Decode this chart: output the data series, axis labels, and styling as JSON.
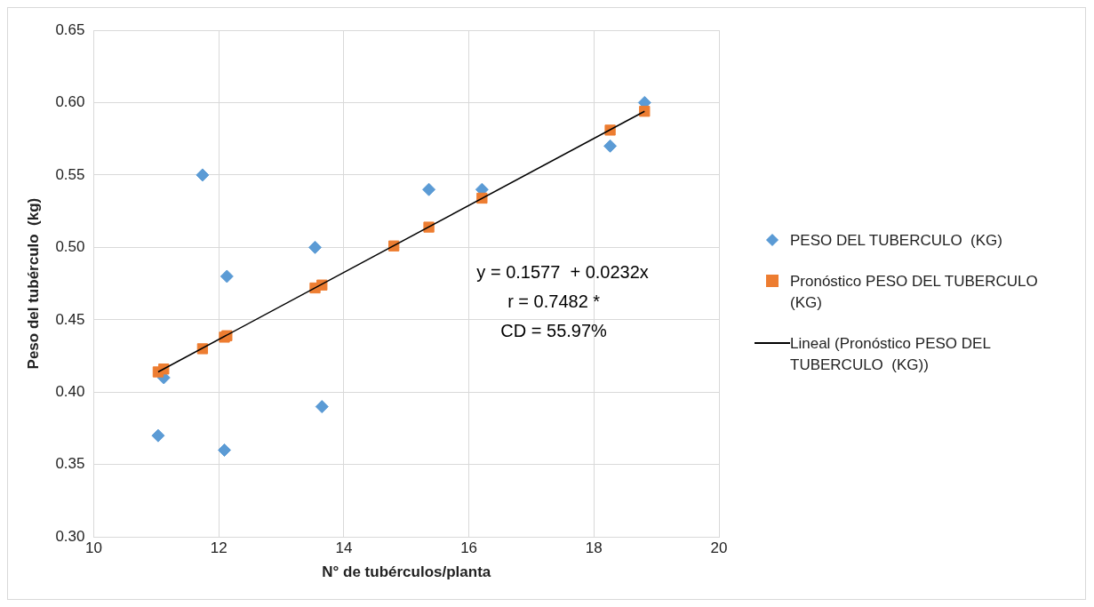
{
  "chart_data": {
    "type": "scatter",
    "xlabel": "N° de tubérculos/planta",
    "ylabel": "Peso del tubérculo  (kg)",
    "xlim": [
      10,
      20
    ],
    "xticks": [
      10,
      12,
      14,
      16,
      18,
      20
    ],
    "ylim": [
      0.3,
      0.65
    ],
    "yticks": [
      {
        "value": 0.3,
        "label": "0.30"
      },
      {
        "value": 0.35,
        "label": "0.35"
      },
      {
        "value": 0.4,
        "label": "0.40"
      },
      {
        "value": 0.45,
        "label": "0.45"
      },
      {
        "value": 0.5,
        "label": "0.50"
      },
      {
        "value": 0.55,
        "label": "0.55"
      },
      {
        "value": 0.6,
        "label": "0.60"
      },
      {
        "value": 0.65,
        "label": "0.65"
      }
    ],
    "grid": true,
    "legend": "right",
    "annotations": [
      "y = 0.1577  + 0.0232x",
      "r = 0.7482 *",
      "CD = 55.97%"
    ],
    "series": [
      {
        "name": "PESO DEL TUBERCULO  (KG)",
        "type": "scatter",
        "marker": "diamond",
        "color": "#5b9bd5",
        "x": [
          11.03,
          11.12,
          11.74,
          12.09,
          12.13,
          13.54,
          13.65,
          14.8,
          15.36,
          16.21,
          18.26,
          18.81
        ],
        "values": [
          0.37,
          0.41,
          0.55,
          0.36,
          0.48,
          0.5,
          0.39,
          null,
          0.54,
          0.54,
          0.57,
          0.6
        ]
      },
      {
        "name": "Pronóstico PESO DEL TUBERCULO  (KG)",
        "type": "scatter",
        "marker": "square",
        "color": "#ed7d31",
        "x": [
          11.03,
          11.12,
          11.74,
          12.09,
          12.13,
          13.54,
          13.65,
          14.8,
          15.36,
          16.21,
          18.26,
          18.81
        ],
        "values": [
          0.414,
          0.416,
          0.43,
          0.438,
          0.439,
          0.472,
          0.474,
          0.501,
          0.514,
          0.534,
          0.581,
          0.594
        ]
      },
      {
        "name": "Lineal (Pronóstico PESO DEL TUBERCULO  (KG))",
        "type": "line",
        "marker": "none",
        "color": "#000000",
        "x": [
          11.03,
          18.81
        ],
        "values": [
          0.414,
          0.594
        ]
      }
    ]
  }
}
